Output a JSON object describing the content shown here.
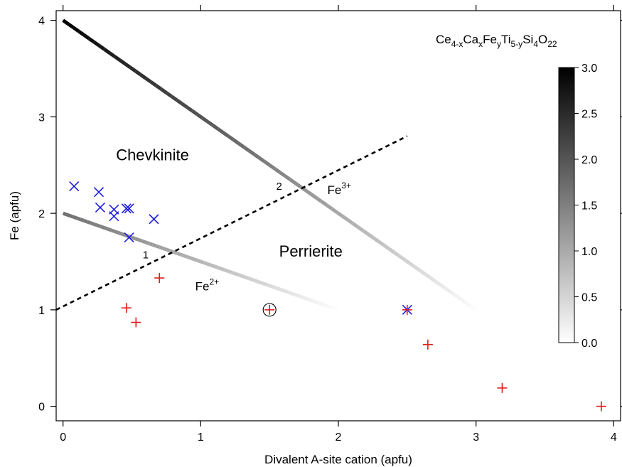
{
  "chart_data": {
    "type": "scatter",
    "title": "",
    "xlabel": "Divalent A-site cation (apfu)",
    "ylabel": "Fe (apfu)",
    "xlim": [
      -0.05,
      4.05
    ],
    "ylim": [
      -0.15,
      4.1
    ],
    "x_ticks": [
      "0",
      "1",
      "2",
      "3",
      "4"
    ],
    "y_ticks": [
      "0",
      "1",
      "2",
      "3",
      "4"
    ],
    "formula": {
      "parts": [
        {
          "text": "Ce",
          "style": "normal"
        },
        {
          "text": "4-x",
          "style": "sub"
        },
        {
          "text": "Ca",
          "style": "normal"
        },
        {
          "text": "x",
          "style": "sub"
        },
        {
          "text": "Fe",
          "style": "normal"
        },
        {
          "text": "y",
          "style": "sub"
        },
        {
          "text": "Ti",
          "style": "normal"
        },
        {
          "text": "5-y",
          "style": "sub"
        },
        {
          "text": "Si",
          "style": "normal"
        },
        {
          "text": "4",
          "style": "sub"
        },
        {
          "text": "O",
          "style": "normal"
        },
        {
          "text": "22",
          "style": "sub"
        }
      ]
    },
    "region_labels": [
      {
        "text": "Chevkinite",
        "x": 0.65,
        "y": 2.55
      },
      {
        "text": "Perrierite",
        "x": 1.8,
        "y": 1.55
      }
    ],
    "gradient_lines": [
      {
        "label": "1",
        "label_x": 0.6,
        "label_y": 1.57,
        "x": [
          0,
          2
        ],
        "y": [
          2,
          1
        ],
        "start_value": 1.7,
        "end_value": 0
      },
      {
        "label": "2",
        "label_x": 1.57,
        "label_y": 2.28,
        "x": [
          0,
          3
        ],
        "y": [
          4,
          1
        ],
        "start_value": 3.0,
        "end_value": 0
      }
    ],
    "dashed_line": {
      "x": [
        -0.05,
        2.5
      ],
      "y": [
        1.0,
        2.8
      ]
    },
    "ion_labels": [
      {
        "base": "Fe",
        "sup": "3+",
        "x": 1.92,
        "y": 2.2
      },
      {
        "base": "Fe",
        "sup": "2+",
        "x": 0.96,
        "y": 1.2
      }
    ],
    "series": [
      {
        "marker": "x",
        "color": "#1f1fe0",
        "x": [
          0.08,
          0.26,
          0.27,
          0.37,
          0.37,
          0.46,
          0.48,
          0.66,
          0.48,
          2.5
        ],
        "y": [
          2.28,
          2.22,
          2.06,
          2.04,
          1.97,
          2.05,
          2.05,
          1.94,
          1.75,
          1.0
        ]
      },
      {
        "marker": "+",
        "color": "#e31a1c",
        "x": [
          0.46,
          0.53,
          0.7,
          1.5,
          2.5,
          2.65,
          3.19,
          3.91
        ],
        "y": [
          1.02,
          0.87,
          1.33,
          1.0,
          1.0,
          0.64,
          0.19,
          0.0
        ]
      }
    ],
    "circled_points": [
      {
        "x": 1.5,
        "y": 1.0
      }
    ],
    "colorbar": {
      "range": [
        0,
        3.0
      ],
      "tick_labels": [
        "0.0",
        "0.5",
        "1.0",
        "1.5",
        "2.0",
        "2.5",
        "3.0"
      ],
      "colors": [
        "#ffffff",
        "#000000"
      ]
    },
    "grid": false
  }
}
